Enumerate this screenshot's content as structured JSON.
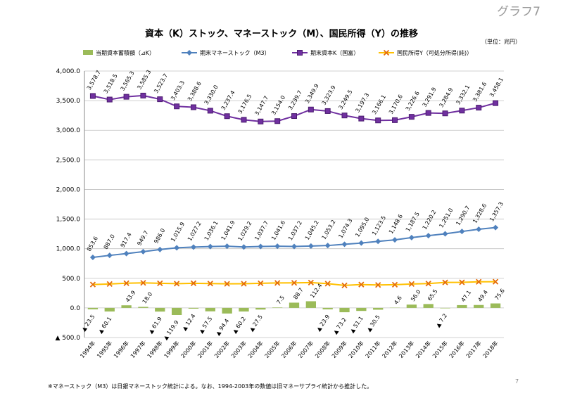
{
  "page_label": "グラフ7",
  "page_number": "7",
  "footnote": "※マネーストック（M3）は日銀マネーストック統計による。なお、1994-2003年の数値は旧マネーサプライ統計から推計した。",
  "chart_data": {
    "type": "combo",
    "title": "資本（K）ストック、マネーストック（M）、国民所得（Y）の推移",
    "unit": "（単位：兆円）",
    "categories": [
      "1994年",
      "1995年",
      "1996年",
      "1997年",
      "1998年",
      "1999年",
      "2000年",
      "2001年",
      "2002年",
      "2003年",
      "2004年",
      "2005年",
      "2006年",
      "2007年",
      "2008年",
      "2009年",
      "2010年",
      "2011年",
      "2012年",
      "2013年",
      "2014年",
      "2015年",
      "2016年",
      "2017年",
      "2018年"
    ],
    "ylim": [
      -500,
      4000
    ],
    "yticks": [
      {
        "value": -500,
        "label": "▲ 500.0"
      },
      {
        "value": 0,
        "label": "0.0"
      },
      {
        "value": 500,
        "label": "500.0"
      },
      {
        "value": 1000,
        "label": "1,000.0"
      },
      {
        "value": 1500,
        "label": "1,500.0"
      },
      {
        "value": 2000,
        "label": "2,000.0"
      },
      {
        "value": 2500,
        "label": "2,500.0"
      },
      {
        "value": 3000,
        "label": "3,000.0"
      },
      {
        "value": 3500,
        "label": "3,500.0"
      },
      {
        "value": 4000,
        "label": "4,000.0"
      }
    ],
    "grid": true,
    "series": [
      {
        "name": "当期資本蓄積額（⊿K）",
        "type": "bar",
        "color": "#9bbb59",
        "values": [
          -23.5,
          -60.1,
          43.9,
          18.0,
          -61.9,
          -119.9,
          -12.4,
          -57.5,
          -94.4,
          -60.2,
          -27.5,
          7.5,
          88.7,
          112.4,
          -23.9,
          -73.2,
          -51.1,
          -30.5,
          4.6,
          56.0,
          65.5,
          -7.2,
          47.1,
          49.4,
          75.6
        ],
        "value_labels": [
          "▲ 23.5",
          "▲ 60.1",
          "43.9",
          "18.0",
          "▲ 61.9",
          "▲ 119.9",
          "▲ 12.4",
          "▲ 57.5",
          "▲ 94.4",
          "▲ 60.2",
          "▲ 27.5",
          "7.5",
          "88.7",
          "112.4",
          "▲ 23.9",
          "▲ 73.2",
          "▲ 51.1",
          "▲ 30.5",
          "4.6",
          "56.0",
          "65.5",
          "▲ 7.2",
          "47.1",
          "49.4",
          "75.6"
        ]
      },
      {
        "name": "期末マネーストック（M3）",
        "type": "line",
        "marker": "diamond",
        "color": "#4f81bd",
        "values": [
          853.6,
          887.0,
          917.4,
          949.7,
          986.0,
          1015.9,
          1027.2,
          1036.1,
          1041.9,
          1029.2,
          1037.7,
          1041.6,
          1037.2,
          1045.2,
          1053.2,
          1074.3,
          1095.0,
          1123.5,
          1148.6,
          1187.5,
          1220.2,
          1251.0,
          1290.7,
          1328.6,
          1357.3
        ],
        "value_labels": [
          "853.6",
          "887.0",
          "917.4",
          "949.7",
          "986.0",
          "1,015.9",
          "1,027.2",
          "1,036.1",
          "1,041.9",
          "1,029.2",
          "1,037.7",
          "1,041.6",
          "1,037.2",
          "1,045.2",
          "1,053.2",
          "1,074.3",
          "1,095.0",
          "1,123.5",
          "1,148.6",
          "1,187.5",
          "1,220.2",
          "1,251.0",
          "1,290.7",
          "1,328.6",
          "1,357.3"
        ]
      },
      {
        "name": "期末資本K（国富）",
        "type": "line",
        "marker": "square",
        "color": "#7030a0",
        "values": [
          3578.7,
          3518.5,
          3565.3,
          3585.3,
          3523.7,
          3403.3,
          3388.6,
          3330.0,
          3237.4,
          3176.5,
          3147.7,
          3154.0,
          3239.7,
          3349.9,
          3323.9,
          3249.5,
          3197.3,
          3166.1,
          3170.6,
          3226.6,
          3291.9,
          3284.9,
          3332.1,
          3381.6,
          3458.1
        ],
        "value_labels": [
          "3,578.7",
          "3,518.5",
          "3,565.3",
          "3,585.3",
          "3,523.7",
          "3,403.3",
          "3,388.6",
          "3,330.0",
          "3,237.4",
          "3,176.5",
          "3,147.7",
          "3,154.0",
          "3,239.7",
          "3,349.9",
          "3,323.9",
          "3,249.5",
          "3,197.3",
          "3,166.1",
          "3,170.6",
          "3,226.6",
          "3,291.9",
          "3,284.9",
          "3,332.1",
          "3,381.6",
          "3,458.1"
        ]
      },
      {
        "name": "国民所得Y（可処分所得(純)）",
        "type": "line",
        "marker": "x",
        "color": "#ffc000",
        "values": [
          394.5,
          403.8,
          417.4,
          423.6,
          415.9,
          409.5,
          416.4,
          410.9,
          406.9,
          408.6,
          415.7,
          421.3,
          422.7,
          427.2,
          410.1,
          379.8,
          394.1,
          388.0,
          392.3,
          403.5,
          411.8,
          430.0,
          431.7,
          441.2,
          442.5
        ]
      }
    ]
  }
}
